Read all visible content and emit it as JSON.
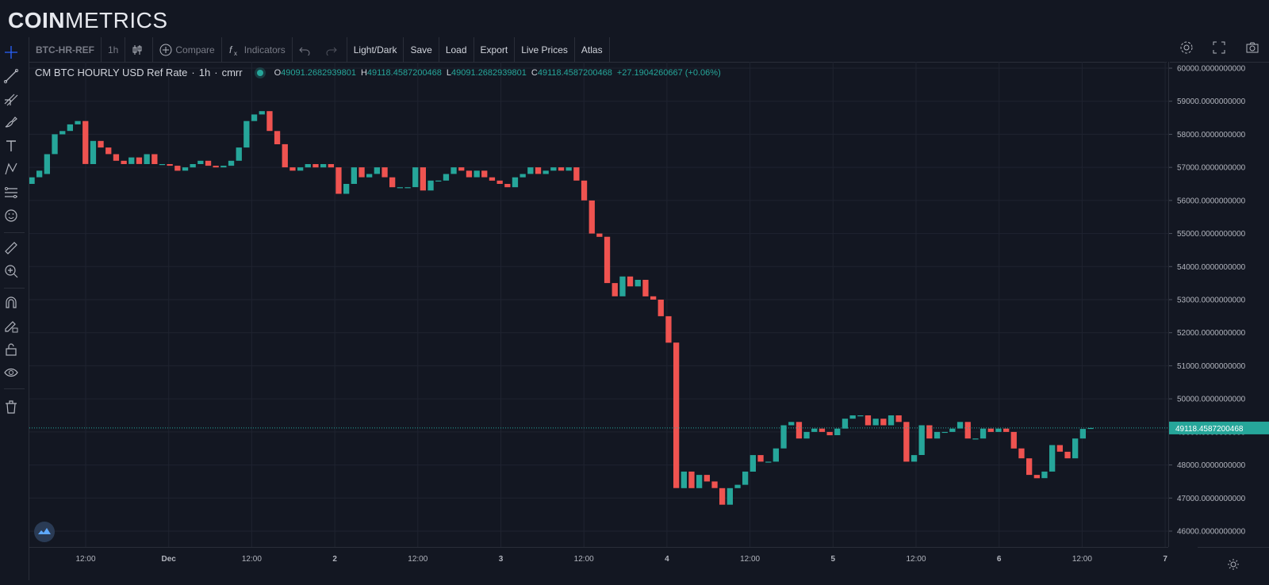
{
  "brand": {
    "logo_bold": "COIN",
    "logo_light": "METRICS"
  },
  "toolbar": {
    "symbol": "BTC-HR-REF",
    "interval": "1h",
    "compare_label": "Compare",
    "indicators_label": "Indicators",
    "light_dark_label": "Light/Dark",
    "save_label": "Save",
    "load_label": "Load",
    "export_label": "Export",
    "live_prices_label": "Live Prices",
    "atlas_label": "Atlas"
  },
  "legend": {
    "series_title": "CM BTC HOURLY USD Ref Rate",
    "interval": "1h",
    "source": "cmrr",
    "o_label": "O",
    "o_value": "49091.2682939801",
    "h_label": "H",
    "h_value": "49118.4587200468",
    "l_label": "L",
    "l_value": "49091.2682939801",
    "c_label": "C",
    "c_value": "49118.4587200468",
    "change": "+27.1904260667 (+0.06%)"
  },
  "colors": {
    "up": "#26a69a",
    "down": "#ef5350",
    "background": "#131722",
    "grid": "#1f2330"
  },
  "icons": [
    "crosshair-icon",
    "trend-line-icon",
    "fib-icon",
    "brush-icon",
    "text-icon",
    "pattern-icon",
    "forecast-icon",
    "emoji-icon",
    "ruler-icon",
    "zoom-in-icon",
    "magnet-icon",
    "lock-draw-icon",
    "lock-icon",
    "eye-icon",
    "trash-icon",
    "settings-icon",
    "fullscreen-icon",
    "camera-icon"
  ],
  "chart_data": {
    "type": "candlestick",
    "title": "CM BTC HOURLY USD Ref Rate",
    "price_ticks": [
      "60000.0000000000",
      "59000.0000000000",
      "58000.0000000000",
      "57000.0000000000",
      "56000.0000000000",
      "55000.0000000000",
      "54000.0000000000",
      "53000.0000000000",
      "52000.0000000000",
      "51000.0000000000",
      "50000.0000000000",
      "49000.0000000000",
      "48000.0000000000",
      "47000.0000000000",
      "46000.0000000000"
    ],
    "time_ticks": [
      "12:00",
      "Dec",
      "12:00",
      "2",
      "12:00",
      "3",
      "12:00",
      "4",
      "12:00",
      "5",
      "12:00",
      "6",
      "12:00",
      "7"
    ],
    "last_price": "49118.4587200468",
    "ylim": [
      45800,
      60100
    ],
    "candles": [
      [
        56500,
        56700
      ],
      [
        56700,
        56900
      ],
      [
        56800,
        57400
      ],
      [
        57400,
        58000
      ],
      [
        58000,
        58100
      ],
      [
        58100,
        58300
      ],
      [
        58300,
        58400
      ],
      [
        58400,
        57100
      ],
      [
        57100,
        57800
      ],
      [
        57800,
        57600
      ],
      [
        57600,
        57400
      ],
      [
        57400,
        57200
      ],
      [
        57200,
        57100
      ],
      [
        57100,
        57300
      ],
      [
        57300,
        57100
      ],
      [
        57100,
        57400
      ],
      [
        57400,
        57100
      ],
      [
        57100,
        57100
      ],
      [
        57100,
        57050
      ],
      [
        57050,
        56900
      ],
      [
        56900,
        57000
      ],
      [
        57000,
        57100
      ],
      [
        57100,
        57200
      ],
      [
        57200,
        57050
      ],
      [
        57050,
        57000
      ],
      [
        57000,
        57050
      ],
      [
        57050,
        57200
      ],
      [
        57200,
        57600
      ],
      [
        57600,
        58400
      ],
      [
        58400,
        58600
      ],
      [
        58600,
        58700
      ],
      [
        58700,
        58100
      ],
      [
        58100,
        57700
      ],
      [
        57700,
        57000
      ],
      [
        57000,
        56900
      ],
      [
        56900,
        57000
      ],
      [
        57000,
        57100
      ],
      [
        57100,
        57000
      ],
      [
        57000,
        57100
      ],
      [
        57100,
        57000
      ],
      [
        57000,
        56200
      ],
      [
        56200,
        56500
      ],
      [
        56500,
        57000
      ],
      [
        57000,
        56700
      ],
      [
        56700,
        56800
      ],
      [
        56800,
        57000
      ],
      [
        57000,
        56700
      ],
      [
        56700,
        56400
      ],
      [
        56400,
        56400
      ],
      [
        56400,
        56400
      ],
      [
        56400,
        57000
      ],
      [
        57000,
        56300
      ],
      [
        56300,
        56600
      ],
      [
        56600,
        56600
      ],
      [
        56600,
        56800
      ],
      [
        56800,
        57000
      ],
      [
        57000,
        56900
      ],
      [
        56900,
        56700
      ],
      [
        56700,
        56900
      ],
      [
        56900,
        56700
      ],
      [
        56700,
        56600
      ],
      [
        56600,
        56500
      ],
      [
        56500,
        56400
      ],
      [
        56400,
        56700
      ],
      [
        56700,
        56800
      ],
      [
        56800,
        57000
      ],
      [
        57000,
        56800
      ],
      [
        56800,
        56900
      ],
      [
        56900,
        57000
      ],
      [
        57000,
        56900
      ],
      [
        56900,
        57000
      ],
      [
        57000,
        56600
      ],
      [
        56600,
        56000
      ],
      [
        56000,
        55000
      ],
      [
        55000,
        54900
      ],
      [
        54900,
        53500
      ],
      [
        53500,
        53100
      ],
      [
        53100,
        53700
      ],
      [
        53700,
        53400
      ],
      [
        53400,
        53600
      ],
      [
        53600,
        53100
      ],
      [
        53100,
        53000
      ],
      [
        53000,
        52500
      ],
      [
        52500,
        51700
      ],
      [
        51700,
        47300
      ],
      [
        47300,
        47800
      ],
      [
        47800,
        47300
      ],
      [
        47300,
        47700
      ],
      [
        47700,
        47500
      ],
      [
        47500,
        47300
      ],
      [
        47300,
        46800
      ],
      [
        46800,
        47300
      ],
      [
        47300,
        47400
      ],
      [
        47400,
        47800
      ],
      [
        47800,
        48300
      ],
      [
        48300,
        48100
      ],
      [
        48100,
        48100
      ],
      [
        48100,
        48500
      ],
      [
        48500,
        49200
      ],
      [
        49200,
        49300
      ],
      [
        49300,
        48800
      ],
      [
        48800,
        49000
      ],
      [
        49000,
        49100
      ],
      [
        49100,
        49000
      ],
      [
        49000,
        48900
      ],
      [
        48900,
        49100
      ],
      [
        49100,
        49400
      ],
      [
        49400,
        49500
      ],
      [
        49500,
        49500
      ],
      [
        49500,
        49200
      ],
      [
        49200,
        49400
      ],
      [
        49400,
        49200
      ],
      [
        49200,
        49500
      ],
      [
        49500,
        49300
      ],
      [
        49300,
        48100
      ],
      [
        48100,
        48300
      ],
      [
        48300,
        49200
      ],
      [
        49200,
        48800
      ],
      [
        48800,
        49000
      ],
      [
        49000,
        49000
      ],
      [
        49000,
        49100
      ],
      [
        49100,
        49300
      ],
      [
        49300,
        48800
      ],
      [
        48800,
        48800
      ],
      [
        48800,
        49100
      ],
      [
        49100,
        49000
      ],
      [
        49000,
        49100
      ],
      [
        49100,
        49000
      ],
      [
        49000,
        48500
      ],
      [
        48500,
        48200
      ],
      [
        48200,
        47700
      ],
      [
        47700,
        47600
      ],
      [
        47600,
        47800
      ],
      [
        47800,
        48600
      ],
      [
        48600,
        48400
      ],
      [
        48400,
        48200
      ],
      [
        48200,
        48800
      ],
      [
        48800,
        49091
      ],
      [
        49091,
        49118
      ]
    ]
  }
}
